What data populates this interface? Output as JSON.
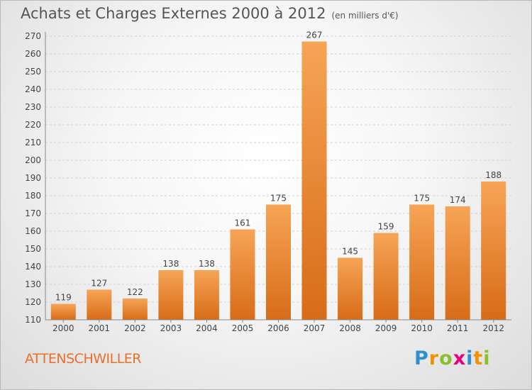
{
  "title": {
    "main": "Achats et Charges Externes 2000 à 2012",
    "unit": "(en milliers d'€)"
  },
  "location": "ATTENSCHWILLER",
  "logo": {
    "letters": [
      "P",
      "r",
      "o",
      "x",
      "i",
      "t",
      "i"
    ],
    "colors": [
      "#2f8fd0",
      "#f39200",
      "#8bbf2b",
      "#e6007e",
      "#2f8fd0",
      "#f39200",
      "#8bbf2b"
    ]
  },
  "chart_data": {
    "type": "bar",
    "title": "Achats et Charges Externes 2000 à 2012",
    "categories": [
      "2000",
      "2001",
      "2002",
      "2003",
      "2004",
      "2005",
      "2006",
      "2007",
      "2008",
      "2009",
      "2010",
      "2011",
      "2012"
    ],
    "values": [
      119,
      127,
      122,
      138,
      138,
      161,
      175,
      267,
      145,
      159,
      175,
      174,
      188
    ],
    "ylim": [
      110,
      270
    ],
    "yticks": [
      110,
      120,
      130,
      140,
      150,
      160,
      170,
      180,
      190,
      200,
      210,
      220,
      230,
      240,
      250,
      260,
      270
    ],
    "grid": true,
    "bar_color": "#f0923a"
  }
}
